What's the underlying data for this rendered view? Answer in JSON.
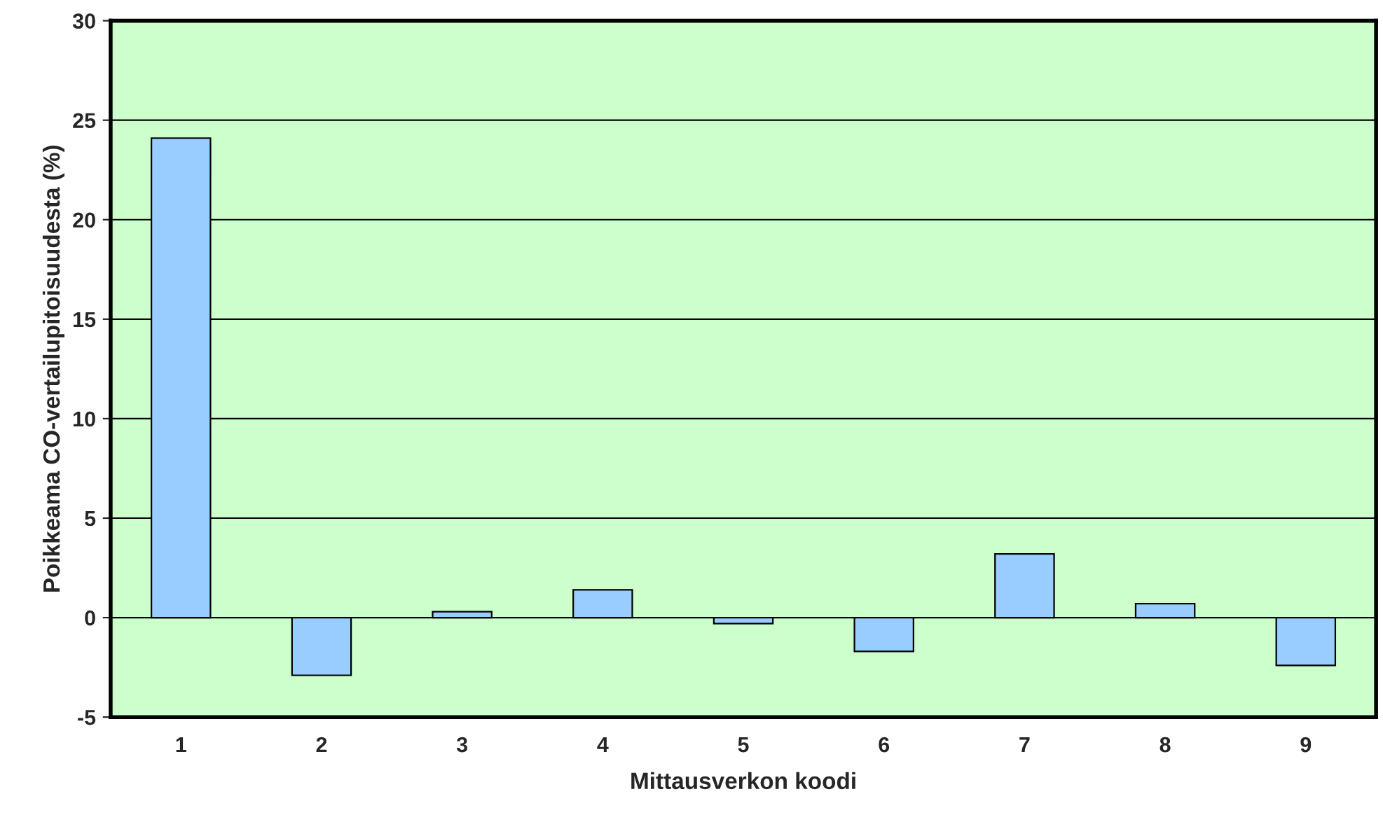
{
  "chart_data": {
    "type": "bar",
    "xlabel": "Mittausverkon koodi",
    "ylabel": "Poikkeama CO-vertailupitoisuudesta (%)",
    "categories": [
      "1",
      "2",
      "3",
      "4",
      "5",
      "6",
      "7",
      "8",
      "9"
    ],
    "values": [
      24.1,
      -2.9,
      0.3,
      1.4,
      -0.3,
      -1.7,
      3.2,
      0.7,
      -2.4
    ],
    "color": "#99ccff",
    "ylim": [
      -5,
      30
    ],
    "yticks": [
      -5,
      0,
      5,
      10,
      15,
      20,
      25,
      30
    ],
    "grid": "y"
  }
}
